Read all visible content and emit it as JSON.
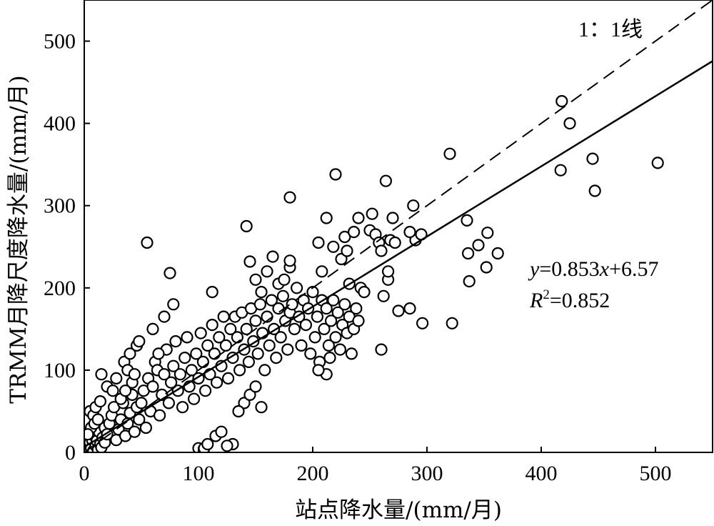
{
  "chart_data": {
    "type": "scatter",
    "xlabel": "站点降水量/(mm/月)",
    "ylabel": "TRMM月降尺度降水量/(mm/月)",
    "xlim": [
      0,
      550
    ],
    "ylim": [
      0,
      550
    ],
    "xticks": [
      "0",
      "100",
      "200",
      "300",
      "400",
      "500"
    ],
    "yticks": [
      "0",
      "100",
      "200",
      "300",
      "400",
      "500"
    ],
    "grid": false,
    "legend": "none",
    "one_to_one_label": "1：1线",
    "fit": {
      "slope": 0.853,
      "intercept": 6.57
    },
    "equation_text": {
      "y": "y",
      "eq_mid": "=0.853",
      "x": "x",
      "eq_end": "+6.57",
      "r": "R",
      "r_exp": "2",
      "r_val": "=0.852"
    },
    "points": [
      [
        2,
        3
      ],
      [
        3,
        8
      ],
      [
        4,
        1
      ],
      [
        5,
        12
      ],
      [
        6,
        5
      ],
      [
        7,
        15
      ],
      [
        8,
        2
      ],
      [
        9,
        20
      ],
      [
        10,
        8
      ],
      [
        11,
        14
      ],
      [
        12,
        3
      ],
      [
        13,
        25
      ],
      [
        14,
        10
      ],
      [
        15,
        6
      ],
      [
        5,
        50
      ],
      [
        8,
        45
      ],
      [
        10,
        55
      ],
      [
        14,
        62
      ],
      [
        6,
        30
      ],
      [
        3,
        22
      ],
      [
        9,
        35
      ],
      [
        12,
        40
      ],
      [
        16,
        18
      ],
      [
        18,
        30
      ],
      [
        18,
        12
      ],
      [
        20,
        22
      ],
      [
        22,
        35
      ],
      [
        24,
        45
      ],
      [
        26,
        55
      ],
      [
        28,
        15
      ],
      [
        30,
        28
      ],
      [
        32,
        40
      ],
      [
        34,
        60
      ],
      [
        36,
        20
      ],
      [
        38,
        35
      ],
      [
        40,
        48
      ],
      [
        42,
        70
      ],
      [
        44,
        25
      ],
      [
        46,
        55
      ],
      [
        15,
        95
      ],
      [
        20,
        80
      ],
      [
        25,
        75
      ],
      [
        28,
        90
      ],
      [
        32,
        65
      ],
      [
        35,
        110
      ],
      [
        38,
        100
      ],
      [
        40,
        120
      ],
      [
        42,
        85
      ],
      [
        44,
        95
      ],
      [
        46,
        130
      ],
      [
        48,
        135
      ],
      [
        36,
        75
      ],
      [
        48,
        40
      ],
      [
        50,
        60
      ],
      [
        52,
        75
      ],
      [
        54,
        30
      ],
      [
        56,
        90
      ],
      [
        58,
        50
      ],
      [
        60,
        80
      ],
      [
        62,
        110
      ],
      [
        64,
        100
      ],
      [
        66,
        45
      ],
      [
        68,
        70
      ],
      [
        70,
        95
      ],
      [
        72,
        125
      ],
      [
        74,
        60
      ],
      [
        76,
        85
      ],
      [
        78,
        105
      ],
      [
        80,
        135
      ],
      [
        82,
        75
      ],
      [
        84,
        95
      ],
      [
        55,
        255
      ],
      [
        75,
        218
      ],
      [
        78,
        180
      ],
      [
        70,
        165
      ],
      [
        60,
        150
      ],
      [
        65,
        120
      ],
      [
        86,
        55
      ],
      [
        88,
        115
      ],
      [
        90,
        140
      ],
      [
        92,
        80
      ],
      [
        94,
        100
      ],
      [
        96,
        65
      ],
      [
        98,
        120
      ],
      [
        100,
        90
      ],
      [
        102,
        145
      ],
      [
        104,
        110
      ],
      [
        106,
        75
      ],
      [
        108,
        130
      ],
      [
        110,
        95
      ],
      [
        112,
        155
      ],
      [
        114,
        120
      ],
      [
        116,
        85
      ],
      [
        118,
        140
      ],
      [
        120,
        105
      ],
      [
        122,
        165
      ],
      [
        124,
        130
      ],
      [
        126,
        90
      ],
      [
        128,
        150
      ],
      [
        112,
        195
      ],
      [
        100,
        5
      ],
      [
        105,
        5
      ],
      [
        115,
        20
      ],
      [
        120,
        25
      ],
      [
        130,
        10
      ],
      [
        108,
        10
      ],
      [
        125,
        8
      ],
      [
        130,
        115
      ],
      [
        132,
        165
      ],
      [
        134,
        140
      ],
      [
        136,
        100
      ],
      [
        138,
        170
      ],
      [
        140,
        125
      ],
      [
        142,
        150
      ],
      [
        144,
        110
      ],
      [
        146,
        175
      ],
      [
        148,
        135
      ],
      [
        150,
        160
      ],
      [
        152,
        120
      ],
      [
        154,
        180
      ],
      [
        156,
        145
      ],
      [
        158,
        100
      ],
      [
        160,
        165
      ],
      [
        162,
        130
      ],
      [
        164,
        185
      ],
      [
        166,
        150
      ],
      [
        168,
        115
      ],
      [
        170,
        175
      ],
      [
        172,
        140
      ],
      [
        174,
        190
      ],
      [
        176,
        160
      ],
      [
        178,
        125
      ],
      [
        180,
        170
      ],
      [
        140,
        60
      ],
      [
        145,
        70
      ],
      [
        150,
        80
      ],
      [
        155,
        55
      ],
      [
        135,
        50
      ],
      [
        142,
        275
      ],
      [
        145,
        232
      ],
      [
        150,
        210
      ],
      [
        155,
        195
      ],
      [
        160,
        220
      ],
      [
        165,
        238
      ],
      [
        170,
        205
      ],
      [
        175,
        210
      ],
      [
        180,
        225
      ],
      [
        180,
        310
      ],
      [
        180,
        233
      ],
      [
        182,
        180
      ],
      [
        184,
        150
      ],
      [
        186,
        200
      ],
      [
        188,
        165
      ],
      [
        190,
        130
      ],
      [
        192,
        185
      ],
      [
        194,
        155
      ],
      [
        196,
        175
      ],
      [
        198,
        120
      ],
      [
        200,
        195
      ],
      [
        202,
        140
      ],
      [
        204,
        165
      ],
      [
        206,
        110
      ],
      [
        208,
        185
      ],
      [
        210,
        150
      ],
      [
        212,
        175
      ],
      [
        214,
        130
      ],
      [
        216,
        160
      ],
      [
        218,
        185
      ],
      [
        220,
        140
      ],
      [
        222,
        170
      ],
      [
        224,
        125
      ],
      [
        226,
        155
      ],
      [
        228,
        180
      ],
      [
        230,
        145
      ],
      [
        232,
        165
      ],
      [
        234,
        120
      ],
      [
        236,
        150
      ],
      [
        238,
        175
      ],
      [
        240,
        160
      ],
      [
        212,
        95
      ],
      [
        215,
        115
      ],
      [
        205,
        100
      ],
      [
        205,
        255
      ],
      [
        208,
        220
      ],
      [
        212,
        285
      ],
      [
        218,
        250
      ],
      [
        220,
        338
      ],
      [
        225,
        235
      ],
      [
        228,
        262
      ],
      [
        230,
        245
      ],
      [
        232,
        205
      ],
      [
        236,
        268
      ],
      [
        240,
        285
      ],
      [
        242,
        200
      ],
      [
        245,
        195
      ],
      [
        250,
        270
      ],
      [
        252,
        290
      ],
      [
        255,
        265
      ],
      [
        258,
        255
      ],
      [
        260,
        245
      ],
      [
        262,
        190
      ],
      [
        264,
        330
      ],
      [
        266,
        210
      ],
      [
        268,
        258
      ],
      [
        270,
        285
      ],
      [
        272,
        255
      ],
      [
        266,
        220
      ],
      [
        260,
        125
      ],
      [
        275,
        172
      ],
      [
        285,
        175
      ],
      [
        290,
        258
      ],
      [
        295,
        265
      ],
      [
        288,
        300
      ],
      [
        285,
        268
      ],
      [
        296,
        157
      ],
      [
        320,
        363
      ],
      [
        322,
        157
      ],
      [
        335,
        282
      ],
      [
        336,
        242
      ],
      [
        337,
        208
      ],
      [
        345,
        252
      ],
      [
        352,
        225
      ],
      [
        353,
        267
      ],
      [
        362,
        242
      ],
      [
        417,
        343
      ],
      [
        418,
        427
      ],
      [
        425,
        400
      ],
      [
        445,
        357
      ],
      [
        447,
        318
      ],
      [
        502,
        352
      ]
    ]
  }
}
